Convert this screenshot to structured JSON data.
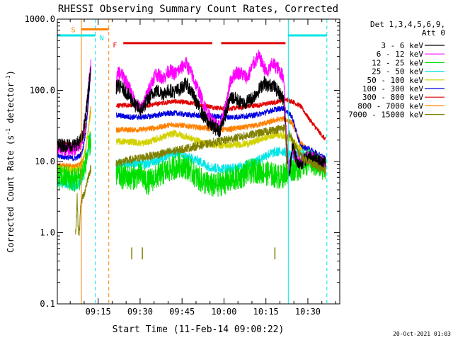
{
  "chart_data": {
    "type": "line",
    "title": "RHESSI Observing Summary Count Rates, Corrected",
    "xlabel": "Start Time (11-Feb-14 09:00:22)",
    "ylabel_main": "Corrected Count Rate (s",
    "ylabel_sup1": "-1",
    "ylabel_mid": " detector",
    "ylabel_sup2": "-1",
    "ylabel_end": ")",
    "yscale": "log",
    "ylim": [
      0.1,
      1000
    ],
    "xlim_min": [
      0,
      101
    ],
    "y_ticks": [
      {
        "value": 0.1,
        "label": "0.1"
      },
      {
        "value": 1,
        "label": "1.0"
      },
      {
        "value": 10,
        "label": "10.0"
      },
      {
        "value": 100,
        "label": "100.0"
      },
      {
        "value": 1000,
        "label": "1000.0"
      }
    ],
    "x_ticks": [
      {
        "min": 14.6,
        "label": "09:15"
      },
      {
        "min": 29.6,
        "label": "09:30"
      },
      {
        "min": 44.6,
        "label": "09:45"
      },
      {
        "min": 59.6,
        "label": "10:00"
      },
      {
        "min": 74.6,
        "label": "10:15"
      },
      {
        "min": 89.6,
        "label": "10:30"
      }
    ],
    "legend_header": [
      "Det 1,3,4,5,6,9,",
      "Att 0"
    ],
    "footer": "20-Oct-2021 01:03",
    "markers": [
      {
        "label": "S",
        "x0": 8.6,
        "x1": 18.4,
        "y": 720,
        "color": "#ff8000"
      },
      {
        "label": "N",
        "x0": 0,
        "x1": 13.6,
        "y": 590,
        "color": "#00e5e5"
      },
      {
        "label": "N",
        "x0": 82.6,
        "x1": 96.4,
        "y": 590,
        "color": "#00e5e5"
      },
      {
        "label": "F",
        "x0": 23.6,
        "x1": 55.4,
        "y": 460,
        "color": "#e00000"
      },
      {
        "label": "F",
        "x0": 58.6,
        "x1": 81.6,
        "y": 460,
        "color": "#e00000"
      }
    ],
    "vlines": [
      {
        "min": 0,
        "color": "#00e5e5",
        "dash": false
      },
      {
        "min": 8.6,
        "color": "#ff8000",
        "dash": false
      },
      {
        "min": 13.6,
        "color": "#00e5e5",
        "dash": true
      },
      {
        "min": 18.4,
        "color": "#ff8000",
        "dash": true
      },
      {
        "min": 82.6,
        "color": "#00e5e5",
        "dash": false
      },
      {
        "min": 96.4,
        "color": "#00e5e5",
        "dash": true
      }
    ],
    "series": [
      {
        "name": "3 - 6 keV",
        "color": "#000000",
        "noise": 0.1,
        "x": [
          0,
          3,
          6,
          8,
          9,
          10,
          11,
          12,
          21,
          22,
          24,
          26,
          28,
          30,
          32,
          35,
          38,
          40,
          42,
          44,
          46,
          48,
          50,
          52,
          54,
          56,
          58,
          60,
          62,
          64,
          66,
          68,
          70,
          72,
          74,
          75,
          77,
          79,
          81,
          82,
          83,
          84,
          86,
          88,
          90,
          92,
          94,
          96
        ],
        "y": [
          17,
          17,
          17,
          19,
          22,
          40,
          90,
          200,
          110,
          115,
          100,
          80,
          60,
          52,
          70,
          100,
          90,
          100,
          95,
          105,
          125,
          95,
          65,
          45,
          35,
          30,
          27,
          45,
          80,
          75,
          65,
          70,
          80,
          100,
          130,
          115,
          120,
          95,
          75,
          15,
          6,
          18,
          9,
          10,
          12,
          11,
          10,
          9
        ]
      },
      {
        "name": "6 - 12 keV",
        "color": "#ff00ff",
        "noise": 0.1,
        "x": [
          0,
          3,
          6,
          8,
          9,
          10,
          11,
          12,
          21,
          22,
          24,
          26,
          28,
          30,
          32,
          35,
          38,
          40,
          42,
          44,
          46,
          48,
          50,
          52,
          54,
          56,
          58,
          60,
          62,
          64,
          66,
          68,
          70,
          72,
          74,
          75,
          77,
          79,
          81,
          82,
          83,
          84,
          86,
          88,
          90,
          92,
          94,
          96
        ],
        "y": [
          15,
          15,
          15,
          17,
          20,
          40,
          100,
          220,
          140,
          180,
          150,
          100,
          65,
          55,
          85,
          170,
          150,
          190,
          170,
          200,
          240,
          170,
          110,
          70,
          45,
          35,
          30,
          55,
          140,
          180,
          170,
          150,
          230,
          300,
          210,
          170,
          240,
          200,
          150,
          20,
          8,
          14,
          10,
          11,
          12,
          11,
          10,
          9
        ]
      },
      {
        "name": "12 - 25 keV",
        "color": "#00e000",
        "noise": 0.18,
        "x": [
          0,
          3,
          6,
          8,
          9,
          10,
          11,
          12,
          21,
          24,
          27,
          30,
          32,
          35,
          38,
          41,
          44,
          47,
          50,
          53,
          56,
          59,
          62,
          65,
          68,
          71,
          74,
          77,
          80,
          82,
          84,
          86,
          88,
          90,
          92,
          94,
          96
        ],
        "y": [
          6,
          6,
          5.5,
          6,
          7,
          9,
          14,
          20,
          6.5,
          6,
          6,
          6.5,
          5,
          6,
          7,
          8,
          9,
          8,
          6,
          5,
          4.5,
          5,
          5.5,
          6,
          7,
          7.5,
          7,
          6.5,
          6,
          7,
          8,
          8,
          9,
          10,
          9,
          8.5,
          8
        ]
      },
      {
        "name": "25 - 50 keV",
        "color": "#00e5e5",
        "noise": 0.07,
        "x": [
          0,
          3,
          6,
          8,
          9,
          10,
          11,
          12,
          21,
          24,
          27,
          30,
          33,
          36,
          39,
          42,
          45,
          48,
          51,
          54,
          57,
          60,
          63,
          66,
          69,
          72,
          75,
          78,
          81,
          84,
          87,
          90,
          93,
          96
        ],
        "y": [
          5,
          4.8,
          4.5,
          5,
          6,
          9,
          14,
          22,
          9,
          9.5,
          9.5,
          9,
          9.5,
          10.5,
          12,
          13,
          12,
          11,
          10,
          8.5,
          8,
          8,
          8,
          8.5,
          9.5,
          10.5,
          12.5,
          13.5,
          14,
          12,
          12.5,
          13,
          11.5,
          10
        ]
      },
      {
        "name": "50 - 100 keV",
        "color": "#d2d200",
        "noise": 0.05,
        "x": [
          0,
          3,
          6,
          8,
          9,
          10,
          11,
          12,
          21,
          24,
          27,
          30,
          33,
          36,
          39,
          42,
          45,
          48,
          51,
          54,
          57,
          60,
          63,
          66,
          69,
          72,
          75,
          78,
          81,
          84,
          87,
          90,
          93,
          96
        ],
        "y": [
          8,
          7.8,
          7.5,
          8,
          9,
          14,
          26,
          50,
          19,
          19,
          19,
          18,
          19,
          21,
          23,
          25,
          23,
          21,
          19,
          17.5,
          17,
          17,
          17,
          17.5,
          18,
          20,
          22,
          24,
          23,
          20,
          15,
          12,
          10,
          9
        ]
      },
      {
        "name": "100 - 300 keV",
        "color": "#0000e0",
        "noise": 0.04,
        "x": [
          0,
          3,
          6,
          8,
          9,
          10,
          11,
          12,
          21,
          24,
          27,
          30,
          33,
          36,
          39,
          42,
          45,
          48,
          51,
          54,
          57,
          60,
          63,
          66,
          69,
          72,
          75,
          78,
          81,
          84,
          87,
          90,
          93,
          96
        ],
        "y": [
          12,
          11.5,
          11,
          12,
          14,
          24,
          60,
          200,
          45,
          43,
          42,
          42,
          43,
          45,
          47,
          48,
          46,
          45,
          44,
          44,
          43,
          42,
          42,
          43,
          44,
          46,
          50,
          54,
          56,
          42,
          16,
          15,
          13,
          11
        ]
      },
      {
        "name": "300 - 800 keV",
        "color": "#e00000",
        "noise": 0.035,
        "x": [
          0,
          3,
          6,
          8,
          9,
          10,
          11,
          12,
          21,
          24,
          27,
          30,
          33,
          36,
          39,
          42,
          45,
          48,
          51,
          54,
          57,
          60,
          63,
          66,
          69,
          72,
          75,
          78,
          81,
          84,
          87,
          90,
          93,
          96
        ],
        "y": [
          18,
          18,
          17,
          18,
          20,
          28,
          60,
          220,
          60,
          62,
          62,
          60,
          62,
          65,
          68,
          70,
          68,
          66,
          63,
          60,
          57,
          55,
          56,
          58,
          60,
          62,
          65,
          68,
          75,
          70,
          60,
          40,
          28,
          20
        ]
      },
      {
        "name": "800 - 7000 keV",
        "color": "#ff8000",
        "noise": 0.04,
        "x": [
          0,
          3,
          6,
          8,
          9,
          10,
          11,
          12,
          21,
          24,
          27,
          30,
          33,
          36,
          39,
          42,
          45,
          48,
          51,
          54,
          57,
          60,
          63,
          66,
          69,
          72,
          75,
          78,
          81,
          84,
          87,
          90,
          93,
          96
        ],
        "y": [
          9,
          8.8,
          8.5,
          9,
          10,
          14,
          26,
          60,
          28,
          28,
          28,
          28,
          29,
          30,
          32,
          33,
          32,
          31,
          30,
          29,
          28,
          28,
          29,
          30,
          31,
          33,
          35,
          38,
          40,
          35,
          18,
          14,
          11,
          8
        ]
      },
      {
        "name": "7000 - 15000 keV",
        "color": "#808000",
        "noise": 0.06,
        "x": [
          6.5,
          6.8,
          7.1,
          7.4,
          7.7,
          8,
          8.3,
          10,
          11,
          12,
          81.6,
          81.8,
          82,
          82.2,
          83,
          84,
          86,
          88,
          90,
          92,
          94,
          96
        ],
        "y": [
          0.9,
          1.6,
          3.2,
          1.3,
          0.9,
          1.2,
          2.5,
          4,
          6,
          8,
          30,
          16,
          7,
          20,
          25,
          20,
          14,
          11,
          10,
          9,
          8,
          7.5
        ]
      }
    ],
    "spikes": [
      {
        "min": 26.6,
        "y": 0.62,
        "color": "#808000"
      },
      {
        "min": 30.4,
        "y": 0.62,
        "color": "#808000"
      },
      {
        "min": 77.8,
        "y": 0.62,
        "color": "#808000"
      }
    ]
  }
}
